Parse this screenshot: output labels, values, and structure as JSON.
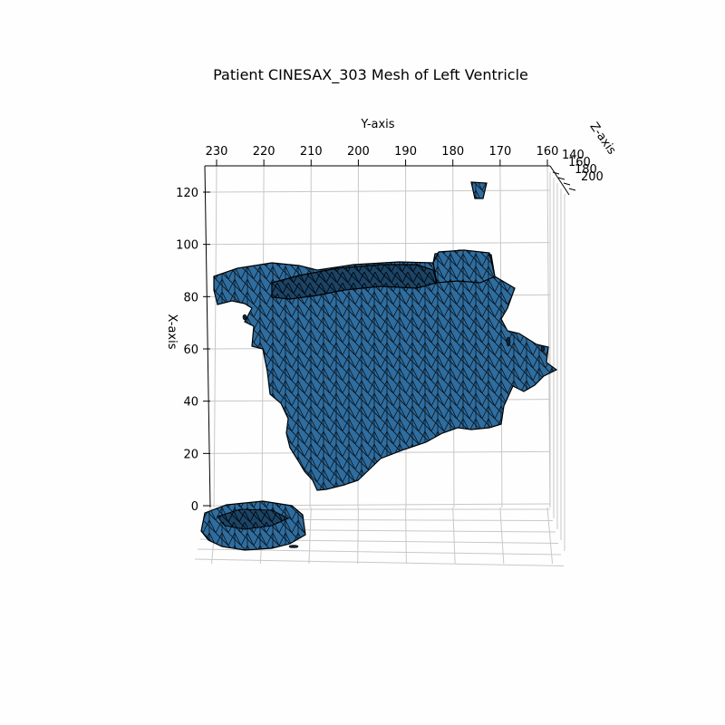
{
  "chart_data": {
    "type": "3d-mesh",
    "title": "Patient CINESAX_303 Mesh of Left Ventricle",
    "xlabel": "X-axis",
    "ylabel": "Y-axis",
    "zlabel": "Z-axis",
    "x_ticks": [
      0,
      20,
      40,
      60,
      80,
      100,
      120
    ],
    "y_ticks": [
      230,
      220,
      210,
      200,
      190,
      180,
      170,
      160
    ],
    "z_ticks": [
      140,
      160,
      180,
      200
    ],
    "z_tick_labels": [
      "140",
      "160",
      "180",
      "200"
    ],
    "xlim": [
      -20,
      125
    ],
    "ylim": [
      232,
      160
    ],
    "zlim": [
      140,
      205
    ],
    "grid": true,
    "colors": {
      "face": "#3a7ab0",
      "face_light": "#6aa6d8",
      "face_dark": "#0b2438",
      "edge": "#000000",
      "grid": "#c8c8c8"
    }
  }
}
